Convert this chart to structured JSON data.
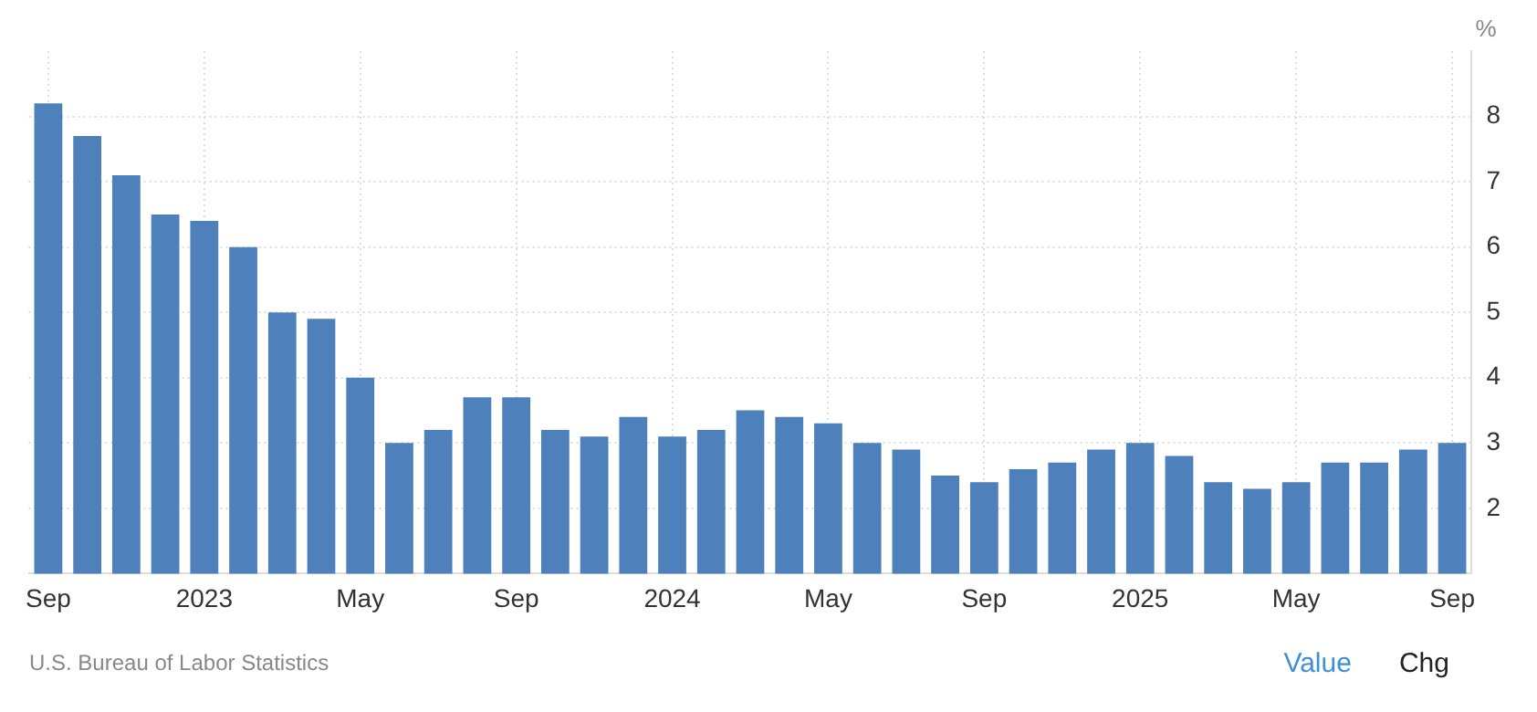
{
  "chart_data": {
    "type": "bar",
    "ylabel": "%",
    "categories": [
      "Sep",
      null,
      null,
      null,
      "2023",
      null,
      null,
      null,
      "May",
      null,
      null,
      null,
      "Sep",
      null,
      null,
      null,
      "2024",
      null,
      null,
      null,
      "May",
      null,
      null,
      null,
      "Sep",
      null,
      null,
      null,
      "2025",
      null,
      null,
      null,
      "May",
      null,
      null,
      null,
      "Sep"
    ],
    "values": [
      8.2,
      7.7,
      7.1,
      6.5,
      6.4,
      6.0,
      5.0,
      4.9,
      4.0,
      3.0,
      3.2,
      3.7,
      3.7,
      3.2,
      3.1,
      3.4,
      3.1,
      3.2,
      3.5,
      3.4,
      3.3,
      3.0,
      2.9,
      2.5,
      2.4,
      2.6,
      2.7,
      2.9,
      3.0,
      2.8,
      2.4,
      2.3,
      2.4,
      2.7,
      2.7,
      2.9,
      3.0
    ],
    "color": "#4e80bb",
    "ylim": [
      1,
      9
    ],
    "yticks": [
      2,
      3,
      4,
      5,
      6,
      7,
      8
    ],
    "grid": true,
    "legend": false,
    "annotations": [
      "U.S. Bureau of Labor Statistics",
      "Value",
      "Chg"
    ]
  }
}
